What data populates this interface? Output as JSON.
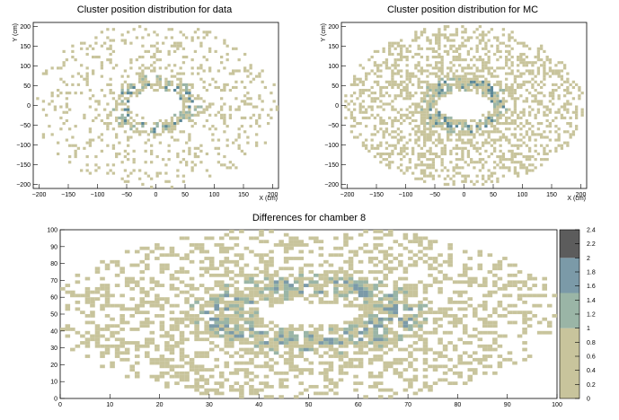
{
  "chart_data": [
    {
      "type": "heatmap",
      "title": "Cluster position distribution for data",
      "xlabel": "X (cm)",
      "ylabel": "Y (cm)",
      "xlim": [
        -210,
        210
      ],
      "ylim": [
        -210,
        210
      ],
      "xticks": [
        -200,
        -150,
        -100,
        -50,
        0,
        50,
        100,
        150,
        200
      ],
      "yticks": [
        -200,
        -150,
        -100,
        -50,
        0,
        50,
        100,
        150,
        200
      ],
      "xtick_labels": [
        "−200",
        "−150",
        "−100",
        "−50",
        "0",
        "50",
        "100",
        "150",
        "200"
      ],
      "ytick_labels": [
        "−200",
        "−150",
        "−100",
        "−50",
        "0",
        "50",
        "100",
        "150",
        "200"
      ],
      "distribution": {
        "shape": "annulus",
        "center": [
          0,
          0
        ],
        "inner_radius_x": 45,
        "inner_radius_y": 35,
        "outer_radius": 210,
        "peak_radius": 55,
        "occupancy": "sparse"
      },
      "colors": {
        "low": "#c8c49c",
        "mid": "#9ab5a6",
        "high": "#5b8797"
      }
    },
    {
      "type": "heatmap",
      "title": "Cluster position distribution for MC",
      "xlabel": "X (cm)",
      "ylabel": "Y (cm)",
      "xlim": [
        -210,
        210
      ],
      "ylim": [
        -210,
        210
      ],
      "xticks": [
        -200,
        -150,
        -100,
        -50,
        0,
        50,
        100,
        150,
        200
      ],
      "yticks": [
        -200,
        -150,
        -100,
        -50,
        0,
        50,
        100,
        150,
        200
      ],
      "xtick_labels": [
        "−200",
        "−150",
        "−100",
        "−50",
        "0",
        "50",
        "100",
        "150",
        "200"
      ],
      "ytick_labels": [
        "−200",
        "−150",
        "−100",
        "−50",
        "0",
        "50",
        "100",
        "150",
        "200"
      ],
      "distribution": {
        "shape": "annulus",
        "center": [
          0,
          0
        ],
        "inner_radius_x": 45,
        "inner_radius_y": 35,
        "outer_radius": 205,
        "peak_radius": 55,
        "occupancy": "dense"
      },
      "colors": {
        "low": "#c8c49c",
        "mid": "#9ab5a6",
        "high": "#5b8797"
      }
    },
    {
      "type": "heatmap",
      "title": "Differences for chamber 8",
      "xlabel": "",
      "ylabel": "",
      "xlim": [
        0,
        100
      ],
      "ylim": [
        0,
        100
      ],
      "xticks": [
        0,
        10,
        20,
        30,
        40,
        50,
        60,
        70,
        80,
        90,
        100
      ],
      "yticks": [
        0,
        10,
        20,
        30,
        40,
        50,
        60,
        70,
        80,
        90,
        100
      ],
      "xtick_labels": [
        "0",
        "10",
        "20",
        "30",
        "40",
        "50",
        "60",
        "70",
        "80",
        "90",
        "100"
      ],
      "ytick_labels": [
        "0",
        "10",
        "20",
        "30",
        "40",
        "50",
        "60",
        "70",
        "80",
        "90",
        "100"
      ],
      "distribution": {
        "shape": "annulus",
        "center": [
          50,
          50
        ],
        "inner_radius_x": 10,
        "inner_radius_y": 7,
        "outer_radius": 52,
        "peak_radius": 17,
        "occupancy": "dense"
      },
      "colorbar": {
        "zlim": [
          0,
          2.4
        ],
        "ticks": [
          0,
          0.2,
          0.4,
          0.6,
          0.8,
          1,
          1.2,
          1.4,
          1.6,
          1.8,
          2,
          2.2,
          2.4
        ],
        "tick_labels": [
          "0",
          "0.2",
          "0.4",
          "0.6",
          "0.8",
          "1",
          "1.2",
          "1.4",
          "1.6",
          "1.8",
          "2",
          "2.2",
          "2.4"
        ],
        "bands": [
          {
            "from": 0,
            "to": 1,
            "color": "#c8c49c"
          },
          {
            "from": 1,
            "to": 1.5,
            "color": "#9ab5a6"
          },
          {
            "from": 1.5,
            "to": 2,
            "color": "#7b9aa8"
          },
          {
            "from": 2,
            "to": 2.4,
            "color": "#5c5c5c"
          }
        ]
      }
    }
  ]
}
